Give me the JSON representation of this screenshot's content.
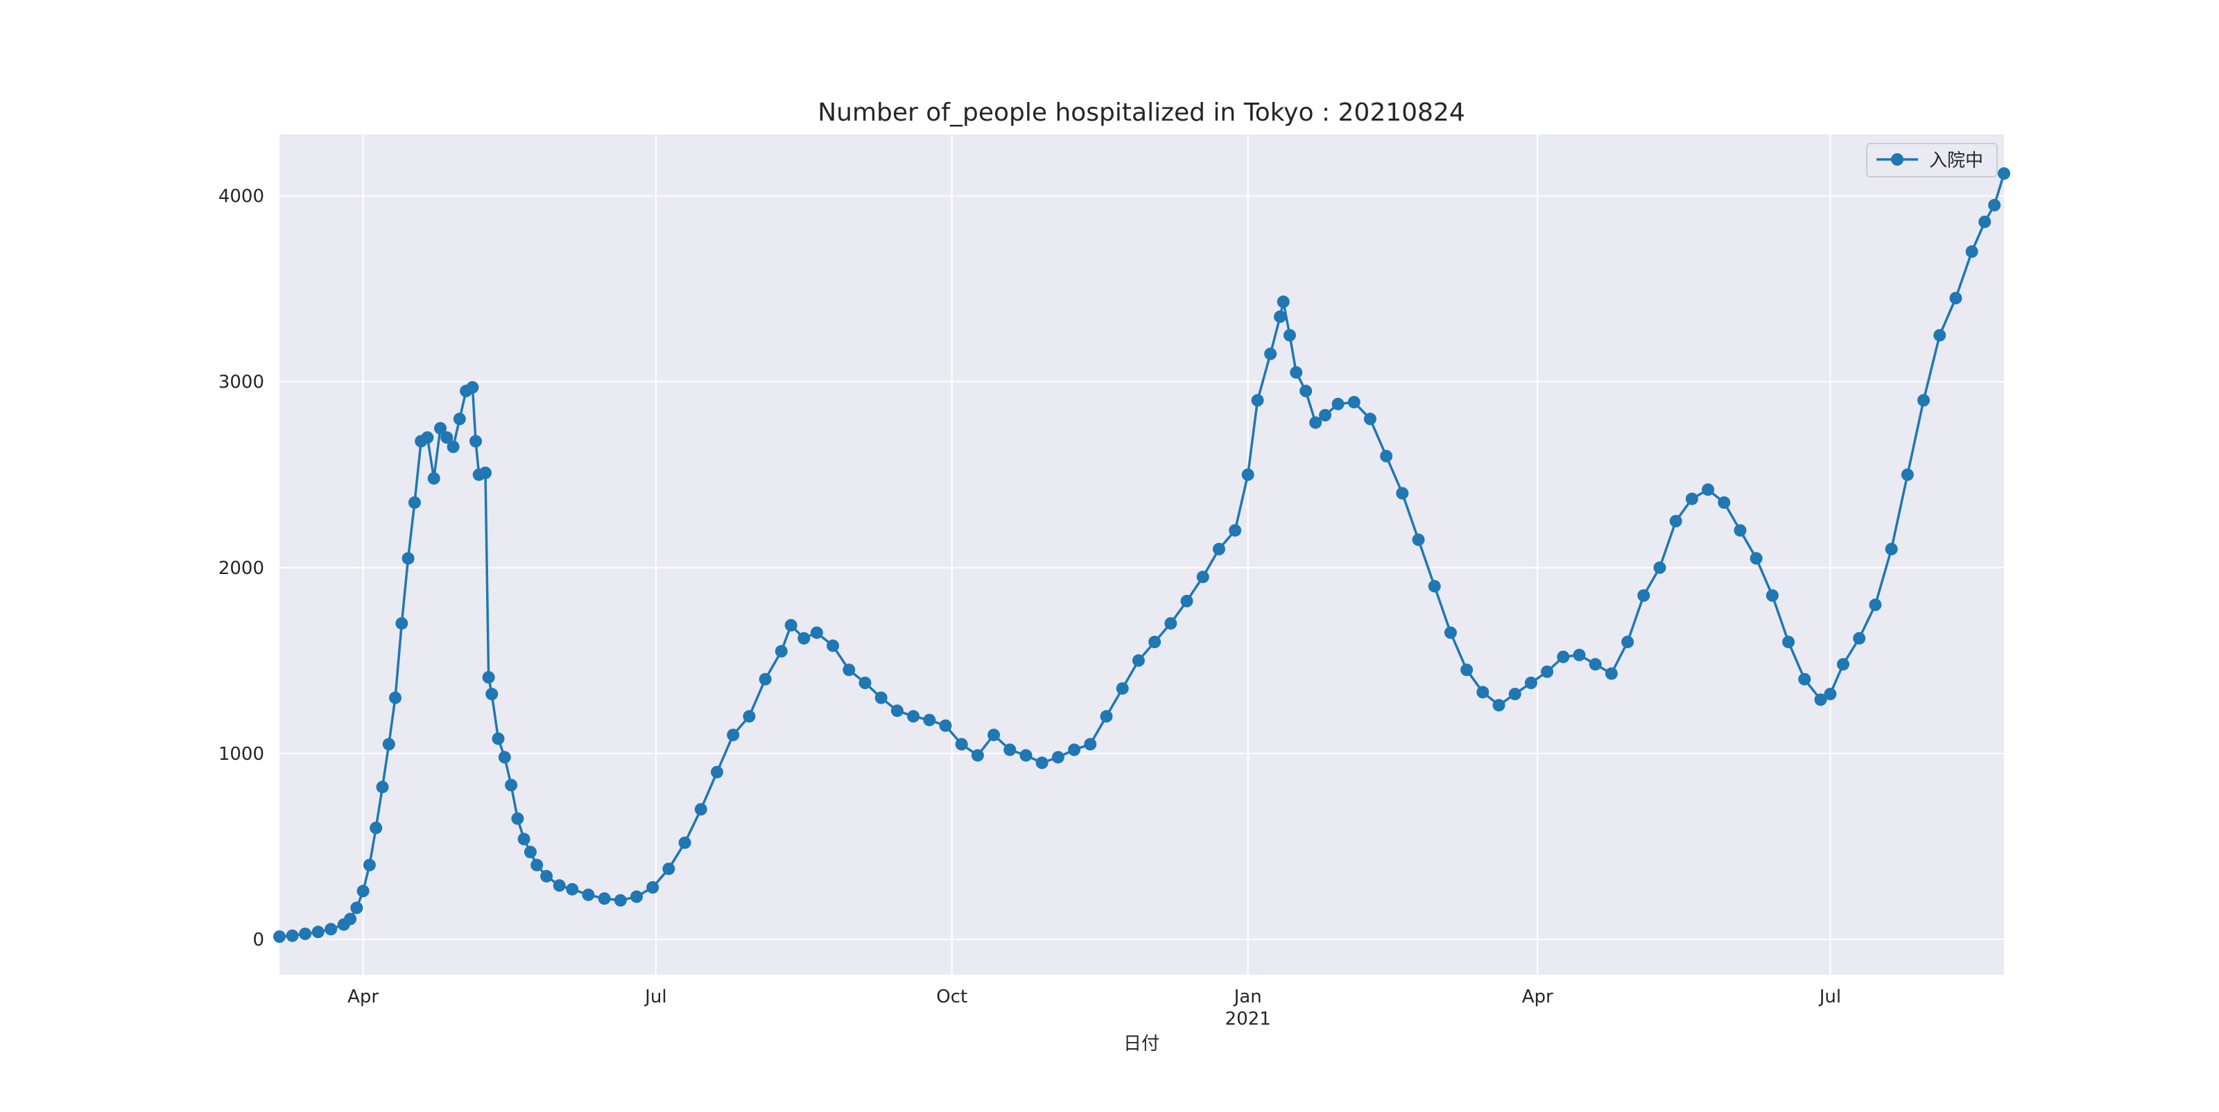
{
  "chart_data": {
    "type": "line",
    "title": "Number of_people hospitalized in Tokyo : 20210824",
    "xlabel": "日付",
    "ylabel": "",
    "x_range": [
      "2020-03-06",
      "2021-08-24"
    ],
    "ylim": [
      -190,
      4330
    ],
    "y_ticks": [
      0,
      1000,
      2000,
      3000,
      4000
    ],
    "x_ticks": [
      {
        "date": "2020-04-01",
        "label": "Apr",
        "sublabel": ""
      },
      {
        "date": "2020-07-01",
        "label": "Jul",
        "sublabel": ""
      },
      {
        "date": "2020-10-01",
        "label": "Oct",
        "sublabel": ""
      },
      {
        "date": "2021-01-01",
        "label": "Jan",
        "sublabel": "2021"
      },
      {
        "date": "2021-04-01",
        "label": "Apr",
        "sublabel": ""
      },
      {
        "date": "2021-07-01",
        "label": "Jul",
        "sublabel": ""
      }
    ],
    "grid": true,
    "legend_position": "top-right",
    "colors": {
      "series": "#1f77b4",
      "plot_bg": "#eaeaf2",
      "grid": "#ffffff"
    },
    "series": [
      {
        "name": "入院中",
        "points": [
          [
            "2020-03-06",
            15
          ],
          [
            "2020-03-10",
            20
          ],
          [
            "2020-03-14",
            30
          ],
          [
            "2020-03-18",
            40
          ],
          [
            "2020-03-22",
            55
          ],
          [
            "2020-03-26",
            80
          ],
          [
            "2020-03-28",
            110
          ],
          [
            "2020-03-30",
            170
          ],
          [
            "2020-04-01",
            260
          ],
          [
            "2020-04-03",
            400
          ],
          [
            "2020-04-05",
            600
          ],
          [
            "2020-04-07",
            820
          ],
          [
            "2020-04-09",
            1050
          ],
          [
            "2020-04-11",
            1300
          ],
          [
            "2020-04-13",
            1700
          ],
          [
            "2020-04-15",
            2050
          ],
          [
            "2020-04-17",
            2350
          ],
          [
            "2020-04-19",
            2680
          ],
          [
            "2020-04-21",
            2700
          ],
          [
            "2020-04-23",
            2480
          ],
          [
            "2020-04-25",
            2750
          ],
          [
            "2020-04-27",
            2700
          ],
          [
            "2020-04-29",
            2650
          ],
          [
            "2020-05-01",
            2800
          ],
          [
            "2020-05-03",
            2950
          ],
          [
            "2020-05-05",
            2970
          ],
          [
            "2020-05-06",
            2680
          ],
          [
            "2020-05-07",
            2500
          ],
          [
            "2020-05-09",
            2510
          ],
          [
            "2020-05-10",
            1410
          ],
          [
            "2020-05-11",
            1320
          ],
          [
            "2020-05-13",
            1080
          ],
          [
            "2020-05-15",
            980
          ],
          [
            "2020-05-17",
            830
          ],
          [
            "2020-05-19",
            650
          ],
          [
            "2020-05-21",
            540
          ],
          [
            "2020-05-23",
            470
          ],
          [
            "2020-05-25",
            400
          ],
          [
            "2020-05-28",
            340
          ],
          [
            "2020-06-01",
            290
          ],
          [
            "2020-06-05",
            270
          ],
          [
            "2020-06-10",
            240
          ],
          [
            "2020-06-15",
            220
          ],
          [
            "2020-06-20",
            210
          ],
          [
            "2020-06-25",
            230
          ],
          [
            "2020-06-30",
            280
          ],
          [
            "2020-07-05",
            380
          ],
          [
            "2020-07-10",
            520
          ],
          [
            "2020-07-15",
            700
          ],
          [
            "2020-07-20",
            900
          ],
          [
            "2020-07-25",
            1100
          ],
          [
            "2020-07-30",
            1200
          ],
          [
            "2020-08-04",
            1400
          ],
          [
            "2020-08-09",
            1550
          ],
          [
            "2020-08-12",
            1690
          ],
          [
            "2020-08-16",
            1620
          ],
          [
            "2020-08-20",
            1650
          ],
          [
            "2020-08-25",
            1580
          ],
          [
            "2020-08-30",
            1450
          ],
          [
            "2020-09-04",
            1380
          ],
          [
            "2020-09-09",
            1300
          ],
          [
            "2020-09-14",
            1230
          ],
          [
            "2020-09-19",
            1200
          ],
          [
            "2020-09-24",
            1180
          ],
          [
            "2020-09-29",
            1150
          ],
          [
            "2020-10-04",
            1050
          ],
          [
            "2020-10-09",
            990
          ],
          [
            "2020-10-14",
            1100
          ],
          [
            "2020-10-19",
            1020
          ],
          [
            "2020-10-24",
            990
          ],
          [
            "2020-10-29",
            950
          ],
          [
            "2020-11-03",
            980
          ],
          [
            "2020-11-08",
            1020
          ],
          [
            "2020-11-13",
            1050
          ],
          [
            "2020-11-18",
            1200
          ],
          [
            "2020-11-23",
            1350
          ],
          [
            "2020-11-28",
            1500
          ],
          [
            "2020-12-03",
            1600
          ],
          [
            "2020-12-08",
            1700
          ],
          [
            "2020-12-13",
            1820
          ],
          [
            "2020-12-18",
            1950
          ],
          [
            "2020-12-23",
            2100
          ],
          [
            "2020-12-28",
            2200
          ],
          [
            "2021-01-01",
            2500
          ],
          [
            "2021-01-04",
            2900
          ],
          [
            "2021-01-08",
            3150
          ],
          [
            "2021-01-11",
            3350
          ],
          [
            "2021-01-12",
            3430
          ],
          [
            "2021-01-14",
            3250
          ],
          [
            "2021-01-16",
            3050
          ],
          [
            "2021-01-19",
            2950
          ],
          [
            "2021-01-22",
            2780
          ],
          [
            "2021-01-25",
            2820
          ],
          [
            "2021-01-29",
            2880
          ],
          [
            "2021-02-03",
            2890
          ],
          [
            "2021-02-08",
            2800
          ],
          [
            "2021-02-13",
            2600
          ],
          [
            "2021-02-18",
            2400
          ],
          [
            "2021-02-23",
            2150
          ],
          [
            "2021-02-28",
            1900
          ],
          [
            "2021-03-05",
            1650
          ],
          [
            "2021-03-10",
            1450
          ],
          [
            "2021-03-15",
            1330
          ],
          [
            "2021-03-20",
            1260
          ],
          [
            "2021-03-25",
            1320
          ],
          [
            "2021-03-30",
            1380
          ],
          [
            "2021-04-04",
            1440
          ],
          [
            "2021-04-09",
            1520
          ],
          [
            "2021-04-14",
            1530
          ],
          [
            "2021-04-19",
            1480
          ],
          [
            "2021-04-24",
            1430
          ],
          [
            "2021-04-29",
            1600
          ],
          [
            "2021-05-04",
            1850
          ],
          [
            "2021-05-09",
            2000
          ],
          [
            "2021-05-14",
            2250
          ],
          [
            "2021-05-19",
            2370
          ],
          [
            "2021-05-24",
            2420
          ],
          [
            "2021-05-29",
            2350
          ],
          [
            "2021-06-03",
            2200
          ],
          [
            "2021-06-08",
            2050
          ],
          [
            "2021-06-13",
            1850
          ],
          [
            "2021-06-18",
            1600
          ],
          [
            "2021-06-23",
            1400
          ],
          [
            "2021-06-28",
            1290
          ],
          [
            "2021-07-01",
            1320
          ],
          [
            "2021-07-05",
            1480
          ],
          [
            "2021-07-10",
            1620
          ],
          [
            "2021-07-15",
            1800
          ],
          [
            "2021-07-20",
            2100
          ],
          [
            "2021-07-25",
            2500
          ],
          [
            "2021-07-30",
            2900
          ],
          [
            "2021-08-04",
            3250
          ],
          [
            "2021-08-09",
            3450
          ],
          [
            "2021-08-14",
            3700
          ],
          [
            "2021-08-18",
            3860
          ],
          [
            "2021-08-21",
            3950
          ],
          [
            "2021-08-24",
            4120
          ]
        ]
      }
    ]
  }
}
